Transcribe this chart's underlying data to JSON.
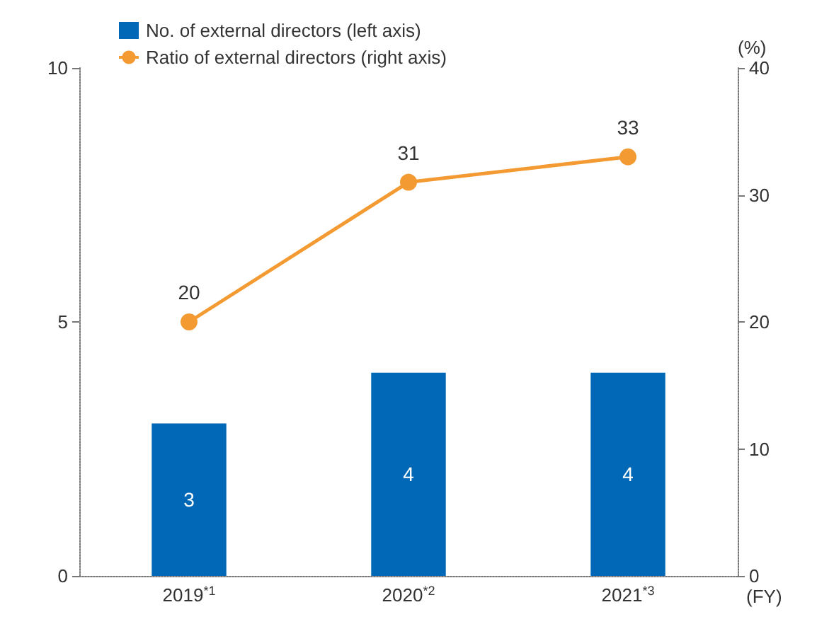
{
  "chart_data": {
    "type": "bar",
    "categories": [
      "2019$^{*1}$",
      "2020$^{*2}$",
      "2021$^{*3}$"
    ],
    "xlabel": "(FY)",
    "y2label": "(%)",
    "series": [
      {
        "name": "No. of external directors (left axis)",
        "color": "#0068b7",
        "values": [
          3,
          4,
          4
        ]
      },
      {
        "name": "Ratio of external directors (right axis)",
        "type": "line",
        "axis": "y2",
        "color": "#f39a33",
        "values": [
          20,
          31,
          33
        ]
      }
    ],
    "ylim": [
      0,
      10
    ],
    "yticks": [
      0,
      5,
      10
    ],
    "y2lim": [
      0,
      40
    ],
    "y2ticks": [
      0,
      10,
      20,
      30,
      40
    ],
    "data_labels": true,
    "legend": "top left",
    "marker": "circle",
    "grid": false
  }
}
